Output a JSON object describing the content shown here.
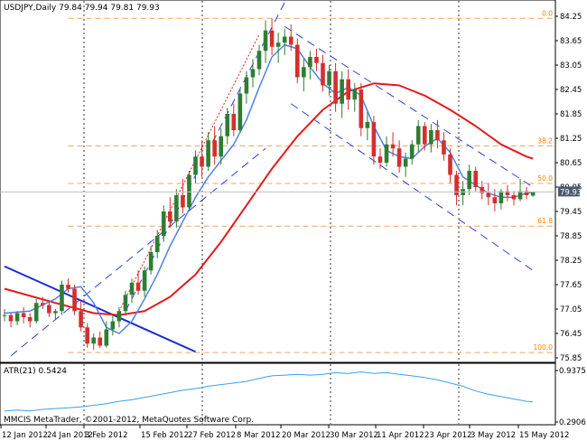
{
  "window": {
    "header": "USDJPY,Daily  79.84 79.94 79.81 79.93",
    "copyright": "MMCIS MetaTrader, ©2001-2012, MetaQuotes Software Corp."
  },
  "colors": {
    "background": "#ffffff",
    "axis": "#000000",
    "bull_candle": "#2e7d32",
    "bear_candle": "#d32f2f",
    "fib_line": "#f4a460",
    "fib_label": "#ff8000",
    "ma_slow": "#e31a1c",
    "ma_fast": "#4f81e6",
    "trendline": "#1a2ccf",
    "channel": "#2b3fd9",
    "trigger_line": "#e31a1c",
    "atr": "#3ca0e6",
    "price_tag_bg": "#4a5a70",
    "price_tag_fg": "#ffffff"
  },
  "chart_data": [
    {
      "type": "candlestick",
      "symbol": "USDJPY",
      "timeframe": "Daily",
      "ohlc_last": {
        "open": 79.84,
        "high": 79.94,
        "low": 79.81,
        "close": 79.93
      },
      "ylim": [
        75.85,
        84.25
      ],
      "y_ticks": [
        "84.25",
        "83.65",
        "83.05",
        "82.45",
        "81.85",
        "81.25",
        "80.65",
        "80.05",
        "79.45",
        "78.85",
        "78.25",
        "77.65",
        "77.05",
        "76.45",
        "75.85"
      ],
      "x_ticks": [
        "12 Jan 2012",
        "24 Jan 2012",
        "3 Feb 2012",
        "15 Feb 2012",
        "27 Feb 2012",
        "8 Mar 2012",
        "20 Mar 2012",
        "30 Mar 2012",
        "11 Apr 2012",
        "23 Apr 2012",
        "3 May 2012",
        "15 May 2012"
      ],
      "current_price": "79.93",
      "fibonacci_levels": [
        {
          "label": "0.0",
          "value": 84.2
        },
        {
          "label": "38.2",
          "value": 81.06
        },
        {
          "label": "50.0",
          "value": 80.14
        },
        {
          "label": "61.8",
          "value": 79.09
        },
        {
          "label": "100.0",
          "value": 75.98
        }
      ],
      "candles": [
        [
          76.9,
          77.05,
          76.75,
          76.9
        ],
        [
          76.9,
          76.95,
          76.6,
          76.75
        ],
        [
          76.75,
          77.0,
          76.65,
          76.95
        ],
        [
          76.95,
          77.1,
          76.7,
          76.85
        ],
        [
          76.85,
          76.95,
          76.6,
          76.75
        ],
        [
          76.75,
          77.3,
          76.7,
          77.2
        ],
        [
          77.2,
          77.35,
          77.05,
          77.15
        ],
        [
          77.15,
          77.25,
          76.85,
          76.95
        ],
        [
          76.95,
          77.05,
          76.8,
          77.0
        ],
        [
          77.0,
          77.75,
          76.9,
          77.65
        ],
        [
          77.65,
          77.8,
          77.45,
          77.55
        ],
        [
          77.55,
          77.65,
          76.9,
          77.0
        ],
        [
          77.0,
          77.25,
          76.5,
          76.6
        ],
        [
          76.6,
          76.7,
          76.1,
          76.2
        ],
        [
          76.2,
          76.45,
          76.05,
          76.35
        ],
        [
          76.35,
          76.5,
          76.1,
          76.15
        ],
        [
          76.15,
          76.75,
          76.1,
          76.55
        ],
        [
          76.55,
          76.9,
          76.4,
          76.75
        ],
        [
          76.75,
          77.1,
          76.6,
          77.0
        ],
        [
          77.0,
          77.5,
          76.9,
          77.4
        ],
        [
          77.4,
          77.8,
          77.2,
          77.7
        ],
        [
          77.7,
          78.0,
          77.4,
          77.5
        ],
        [
          77.5,
          78.1,
          77.35,
          78.0
        ],
        [
          78.0,
          78.6,
          77.9,
          78.45
        ],
        [
          78.45,
          79.0,
          78.3,
          78.85
        ],
        [
          78.85,
          79.6,
          78.7,
          79.45
        ],
        [
          79.45,
          79.8,
          79.05,
          79.2
        ],
        [
          79.2,
          80.0,
          79.05,
          79.85
        ],
        [
          79.85,
          80.25,
          79.4,
          79.55
        ],
        [
          79.55,
          80.45,
          79.45,
          80.35
        ],
        [
          80.35,
          80.95,
          80.15,
          80.8
        ],
        [
          80.8,
          81.2,
          80.3,
          80.55
        ],
        [
          80.55,
          81.4,
          80.45,
          81.2
        ],
        [
          81.2,
          81.55,
          80.6,
          80.8
        ],
        [
          80.8,
          81.5,
          80.6,
          81.3
        ],
        [
          81.3,
          82.0,
          81.1,
          81.85
        ],
        [
          81.85,
          82.1,
          81.3,
          81.45
        ],
        [
          81.45,
          82.45,
          81.4,
          82.35
        ],
        [
          82.35,
          82.9,
          82.1,
          82.75
        ],
        [
          82.75,
          83.2,
          82.5,
          82.95
        ],
        [
          82.95,
          83.55,
          82.8,
          83.4
        ],
        [
          83.4,
          84.15,
          83.1,
          83.9
        ],
        [
          83.9,
          84.2,
          83.3,
          83.5
        ],
        [
          83.5,
          83.85,
          83.1,
          83.6
        ],
        [
          83.6,
          83.95,
          83.3,
          83.75
        ],
        [
          83.75,
          84.05,
          83.4,
          83.55
        ],
        [
          83.55,
          83.7,
          82.6,
          82.75
        ],
        [
          82.75,
          83.2,
          82.4,
          83.0
        ],
        [
          83.0,
          83.4,
          82.7,
          83.25
        ],
        [
          83.25,
          83.45,
          82.9,
          83.1
        ],
        [
          83.1,
          83.3,
          82.4,
          82.55
        ],
        [
          82.55,
          83.05,
          82.3,
          82.9
        ],
        [
          82.9,
          83.1,
          81.9,
          82.1
        ],
        [
          82.1,
          82.9,
          81.75,
          82.7
        ],
        [
          82.7,
          82.95,
          81.95,
          82.2
        ],
        [
          82.2,
          82.6,
          81.9,
          82.45
        ],
        [
          82.45,
          82.6,
          81.3,
          81.5
        ],
        [
          81.5,
          81.9,
          81.2,
          81.65
        ],
        [
          81.65,
          81.8,
          80.6,
          80.8
        ],
        [
          80.8,
          81.0,
          80.5,
          80.65
        ],
        [
          80.65,
          81.3,
          80.55,
          81.1
        ],
        [
          81.1,
          81.4,
          80.8,
          81.0
        ],
        [
          81.0,
          81.2,
          80.4,
          80.55
        ],
        [
          80.55,
          80.9,
          80.3,
          80.75
        ],
        [
          80.75,
          81.2,
          80.6,
          81.1
        ],
        [
          81.1,
          81.7,
          80.9,
          81.55
        ],
        [
          81.55,
          81.65,
          80.95,
          81.1
        ],
        [
          81.1,
          81.6,
          80.9,
          81.45
        ],
        [
          81.45,
          81.7,
          81.0,
          81.2
        ],
        [
          81.2,
          81.4,
          80.7,
          80.85
        ],
        [
          80.85,
          81.0,
          80.15,
          80.35
        ],
        [
          80.35,
          80.45,
          79.6,
          79.85
        ],
        [
          79.85,
          80.2,
          79.6,
          80.0
        ],
        [
          80.0,
          80.6,
          79.85,
          80.45
        ],
        [
          80.45,
          80.55,
          79.95,
          80.05
        ],
        [
          80.05,
          80.2,
          79.75,
          79.9
        ],
        [
          79.9,
          80.15,
          79.6,
          79.8
        ],
        [
          79.8,
          80.0,
          79.45,
          79.65
        ],
        [
          79.65,
          80.0,
          79.5,
          79.95
        ],
        [
          79.95,
          80.1,
          79.7,
          79.85
        ],
        [
          79.85,
          79.95,
          79.6,
          79.75
        ],
        [
          79.75,
          80.25,
          79.7,
          79.95
        ],
        [
          79.95,
          80.05,
          79.75,
          79.85
        ],
        [
          79.84,
          79.94,
          79.81,
          79.93
        ]
      ],
      "ma_slow": [
        [
          0,
          77.55
        ],
        [
          8,
          77.2
        ],
        [
          14,
          76.95
        ],
        [
          18,
          76.9
        ],
        [
          22,
          77.0
        ],
        [
          26,
          77.35
        ],
        [
          30,
          77.9
        ],
        [
          34,
          78.7
        ],
        [
          38,
          79.6
        ],
        [
          42,
          80.5
        ],
        [
          46,
          81.3
        ],
        [
          50,
          81.95
        ],
        [
          54,
          82.4
        ],
        [
          58,
          82.6
        ],
        [
          62,
          82.55
        ],
        [
          66,
          82.3
        ],
        [
          70,
          81.95
        ],
        [
          74,
          81.55
        ],
        [
          78,
          81.1
        ],
        [
          82,
          80.8
        ],
        [
          83,
          80.75
        ]
      ],
      "ma_fast": [
        [
          0,
          76.95
        ],
        [
          4,
          77.0
        ],
        [
          8,
          77.3
        ],
        [
          10,
          77.55
        ],
        [
          12,
          77.6
        ],
        [
          14,
          77.2
        ],
        [
          16,
          76.6
        ],
        [
          18,
          76.45
        ],
        [
          20,
          76.75
        ],
        [
          22,
          77.3
        ],
        [
          24,
          77.9
        ],
        [
          26,
          78.6
        ],
        [
          28,
          79.2
        ],
        [
          30,
          79.8
        ],
        [
          32,
          80.3
        ],
        [
          34,
          80.7
        ],
        [
          36,
          81.1
        ],
        [
          38,
          81.7
        ],
        [
          40,
          82.5
        ],
        [
          42,
          83.25
        ],
        [
          44,
          83.55
        ],
        [
          46,
          83.45
        ],
        [
          48,
          83.0
        ],
        [
          50,
          82.6
        ],
        [
          52,
          82.35
        ],
        [
          54,
          82.5
        ],
        [
          56,
          82.3
        ],
        [
          58,
          81.55
        ],
        [
          60,
          80.95
        ],
        [
          62,
          80.8
        ],
        [
          64,
          80.75
        ],
        [
          66,
          81.05
        ],
        [
          68,
          81.25
        ],
        [
          70,
          80.9
        ],
        [
          72,
          80.3
        ],
        [
          74,
          80.1
        ],
        [
          76,
          79.9
        ],
        [
          78,
          79.8
        ],
        [
          80,
          79.8
        ],
        [
          82,
          79.9
        ],
        [
          83,
          79.92
        ]
      ],
      "trendline": [
        [
          0,
          78.1
        ],
        [
          30,
          76.0
        ]
      ],
      "up_channel_upper": [
        [
          19,
          77.0
        ],
        [
          47,
          85.5
        ]
      ],
      "up_channel_lower": [
        [
          1,
          75.9
        ],
        [
          41,
          81.0
        ]
      ],
      "down_channel_upper": [
        [
          44,
          84.0
        ],
        [
          83,
          80.05
        ]
      ],
      "down_channel_lower": [
        [
          45,
          82.1
        ],
        [
          83,
          78.0
        ]
      ],
      "trigger_line": [
        [
          18,
          77.0
        ],
        [
          40,
          83.8
        ]
      ]
    },
    {
      "type": "line",
      "name": "ATR(21)",
      "title": "ATR(21) 0.5424",
      "value": 0.5424,
      "y_ticks": [
        "0.9375",
        "0.2906"
      ],
      "ylim": [
        0.2906,
        0.9375
      ],
      "values": [
        [
          0,
          0.43
        ],
        [
          2,
          0.44
        ],
        [
          4,
          0.43
        ],
        [
          6,
          0.45
        ],
        [
          8,
          0.46
        ],
        [
          10,
          0.47
        ],
        [
          12,
          0.48
        ],
        [
          14,
          0.5
        ],
        [
          16,
          0.52
        ],
        [
          18,
          0.55
        ],
        [
          20,
          0.57
        ],
        [
          22,
          0.6
        ],
        [
          24,
          0.63
        ],
        [
          26,
          0.66
        ],
        [
          28,
          0.69
        ],
        [
          30,
          0.71
        ],
        [
          32,
          0.74
        ],
        [
          34,
          0.76
        ],
        [
          36,
          0.78
        ],
        [
          38,
          0.8
        ],
        [
          40,
          0.84
        ],
        [
          42,
          0.87
        ],
        [
          44,
          0.88
        ],
        [
          46,
          0.89
        ],
        [
          48,
          0.88
        ],
        [
          50,
          0.89
        ],
        [
          52,
          0.91
        ],
        [
          54,
          0.9
        ],
        [
          56,
          0.92
        ],
        [
          58,
          0.9
        ],
        [
          60,
          0.91
        ],
        [
          62,
          0.89
        ],
        [
          64,
          0.87
        ],
        [
          66,
          0.85
        ],
        [
          68,
          0.82
        ],
        [
          70,
          0.78
        ],
        [
          72,
          0.74
        ],
        [
          74,
          0.68
        ],
        [
          76,
          0.64
        ],
        [
          78,
          0.61
        ],
        [
          80,
          0.58
        ],
        [
          82,
          0.55
        ],
        [
          83,
          0.5424
        ]
      ]
    }
  ]
}
